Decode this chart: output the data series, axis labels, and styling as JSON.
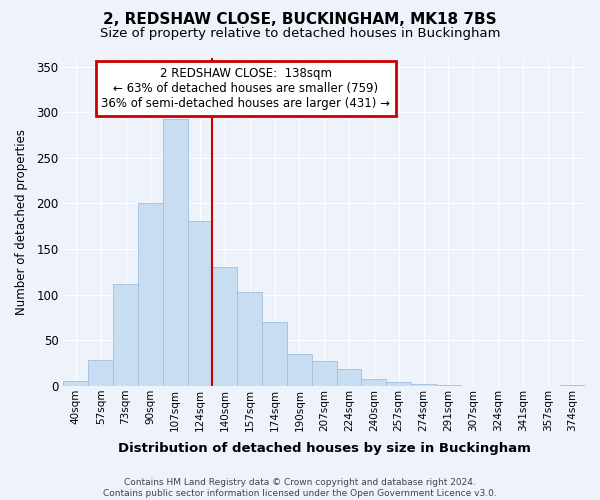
{
  "title1": "2, REDSHAW CLOSE, BUCKINGHAM, MK18 7BS",
  "title2": "Size of property relative to detached houses in Buckingham",
  "xlabel": "Distribution of detached houses by size in Buckingham",
  "ylabel": "Number of detached properties",
  "categories": [
    "40sqm",
    "57sqm",
    "73sqm",
    "90sqm",
    "107sqm",
    "124sqm",
    "140sqm",
    "157sqm",
    "174sqm",
    "190sqm",
    "207sqm",
    "224sqm",
    "240sqm",
    "257sqm",
    "274sqm",
    "291sqm",
    "307sqm",
    "324sqm",
    "341sqm",
    "357sqm",
    "374sqm"
  ],
  "values": [
    5,
    28,
    112,
    200,
    293,
    181,
    130,
    103,
    70,
    35,
    27,
    19,
    8,
    4,
    2,
    1,
    0,
    0,
    0,
    0,
    1
  ],
  "bar_color": "#c9ddf2",
  "bar_edge_color": "#a0bfdf",
  "background_color": "#eef2fa",
  "grid_color": "#ffffff",
  "red_line_color": "#cc0000",
  "red_line_x": 5.5,
  "annotation_text_line1": "2 REDSHAW CLOSE:  138sqm",
  "annotation_text_line2": "← 63% of detached houses are smaller (759)",
  "annotation_text_line3": "36% of semi-detached houses are larger (431) →",
  "annotation_box_facecolor": "#ffffff",
  "annotation_box_edgecolor": "#cc0000",
  "footer1": "Contains HM Land Registry data © Crown copyright and database right 2024.",
  "footer2": "Contains public sector information licensed under the Open Government Licence v3.0.",
  "ylim": [
    0,
    360
  ],
  "yticks": [
    0,
    50,
    100,
    150,
    200,
    250,
    300,
    350
  ]
}
